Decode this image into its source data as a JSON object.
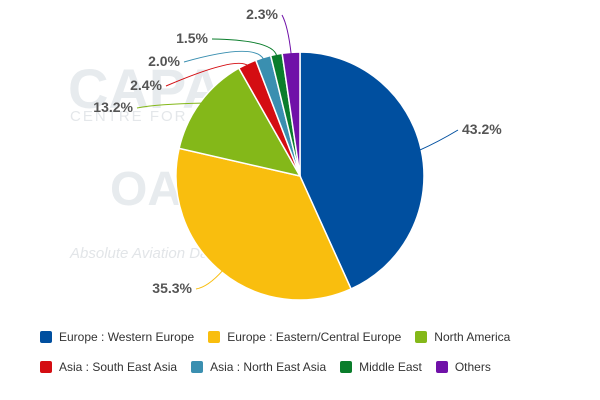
{
  "watermark": {
    "brand": "CAPA",
    "brand_sub": "CENTRE FOR",
    "logo": "OAG",
    "tagline": "Absolute Aviation Data"
  },
  "chart_data": {
    "type": "pie",
    "title": "",
    "start_angle_deg": 0,
    "direction": "clockwise",
    "slices": [
      {
        "name": "Europe : Western Europe",
        "value": 43.2,
        "label": "43.2%",
        "color": "#004f9f"
      },
      {
        "name": "Europe : Eastern/Central Europe",
        "value": 35.3,
        "label": "35.3%",
        "color": "#f9be0e"
      },
      {
        "name": "North America",
        "value": 13.2,
        "label": "13.2%",
        "color": "#84b819"
      },
      {
        "name": "Asia : South East Asia",
        "value": 2.4,
        "label": "2.4%",
        "color": "#d40d12"
      },
      {
        "name": "Asia : North East Asia",
        "value": 2.0,
        "label": "2.0%",
        "color": "#3a8fb0"
      },
      {
        "name": "Middle East",
        "value": 1.5,
        "label": "1.5%",
        "color": "#0a7d2b"
      },
      {
        "name": "Others",
        "value": 2.3,
        "label": "2.3%",
        "color": "#7011a8"
      }
    ],
    "legend_position": "bottom"
  }
}
